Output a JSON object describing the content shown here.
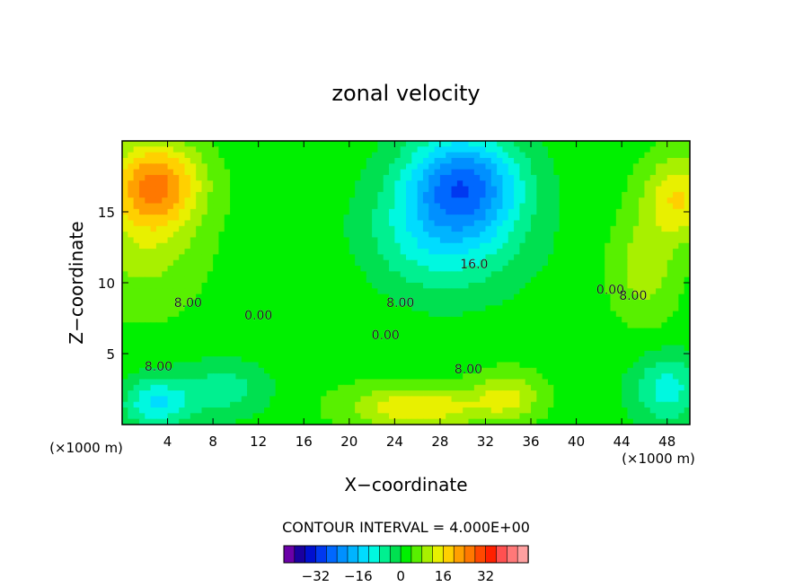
{
  "chart_data": {
    "type": "heatmap",
    "title": "zonal velocity",
    "xlabel": "X−coordinate",
    "ylabel": "Z−coordinate",
    "x_unit_left": "(×1000 m)",
    "x_unit_right": "(×1000 m)",
    "xlim": [
      0,
      50
    ],
    "ylim": [
      0,
      20
    ],
    "x_ticks": [
      4,
      8,
      12,
      16,
      20,
      24,
      28,
      32,
      36,
      40,
      44,
      48
    ],
    "x_tick_labels": [
      "4",
      "8",
      "12",
      "16",
      "20",
      "24",
      "28",
      "32",
      "36",
      "40",
      "44",
      "48"
    ],
    "y_ticks": [
      5,
      10,
      15
    ],
    "y_tick_labels": [
      "5",
      "10",
      "15"
    ],
    "contour_interval_text": "CONTOUR INTERVAL = 4.000E+00",
    "contour_labels": [
      {
        "text": "8.00",
        "x": 5.8,
        "y": 8.3
      },
      {
        "text": "0.00",
        "x": 12.0,
        "y": 7.4
      },
      {
        "text": "8.00",
        "x": 24.5,
        "y": 8.3
      },
      {
        "text": "16.0",
        "x": 31.0,
        "y": 11.0
      },
      {
        "text": "0.00",
        "x": 23.2,
        "y": 6.0
      },
      {
        "text": "8.00",
        "x": 30.5,
        "y": 3.6
      },
      {
        "text": "8.00",
        "x": 3.2,
        "y": 3.8
      },
      {
        "text": "0.00",
        "x": 43.0,
        "y": 9.2
      },
      {
        "text": "8.00",
        "x": 45.0,
        "y": 8.8
      }
    ],
    "colorbar": {
      "levels": [
        -36,
        -32,
        -28,
        -24,
        -20,
        -16,
        -12,
        -8,
        -4,
        0,
        4,
        8,
        12,
        16,
        20,
        24,
        28,
        32,
        36
      ],
      "colors": [
        "#6a00a8",
        "#1a00a0",
        "#0010d0",
        "#0038f0",
        "#0068ff",
        "#0090ff",
        "#00b4ff",
        "#00dcff",
        "#00f8e0",
        "#00f090",
        "#00e050",
        "#00f000",
        "#58f000",
        "#a8f000",
        "#e8f000",
        "#ffd000",
        "#ffa000",
        "#ff7800",
        "#ff4800",
        "#ff2000",
        "#ff5050",
        "#ff7878",
        "#ffa0a0"
      ],
      "tick_values": [
        -32,
        -16,
        0,
        16,
        32
      ],
      "tick_labels": [
        "−32",
        "−16",
        "0",
        "16",
        "32"
      ]
    },
    "field_features": [
      {
        "x": 30,
        "y": 17,
        "value": -26,
        "sx": 5,
        "sy": 3.5
      },
      {
        "x": 28,
        "y": 13,
        "value": -12,
        "sx": 7,
        "sy": 4
      },
      {
        "x": 3,
        "y": 17,
        "value": 20,
        "sx": 4,
        "sy": 3
      },
      {
        "x": 2,
        "y": 13,
        "value": 8,
        "sx": 5,
        "sy": 5
      },
      {
        "x": 49,
        "y": 16,
        "value": 14,
        "sx": 3,
        "sy": 3
      },
      {
        "x": 46,
        "y": 11,
        "value": 8,
        "sx": 3,
        "sy": 4
      },
      {
        "x": 3,
        "y": 1.5,
        "value": -14,
        "sx": 3,
        "sy": 1.8
      },
      {
        "x": 9,
        "y": 2.5,
        "value": -8,
        "sx": 4,
        "sy": 2
      },
      {
        "x": 48,
        "y": 2.5,
        "value": -12,
        "sx": 3,
        "sy": 2.5
      },
      {
        "x": 26,
        "y": 1.2,
        "value": 14,
        "sx": 6,
        "sy": 1.5
      },
      {
        "x": 34,
        "y": 2.0,
        "value": 10,
        "sx": 3,
        "sy": 1.8
      },
      {
        "x": 18,
        "y": 9,
        "value": 2,
        "sx": 6,
        "sy": 6
      }
    ],
    "background_value": 2,
    "grid": false,
    "legend": "bottom"
  }
}
